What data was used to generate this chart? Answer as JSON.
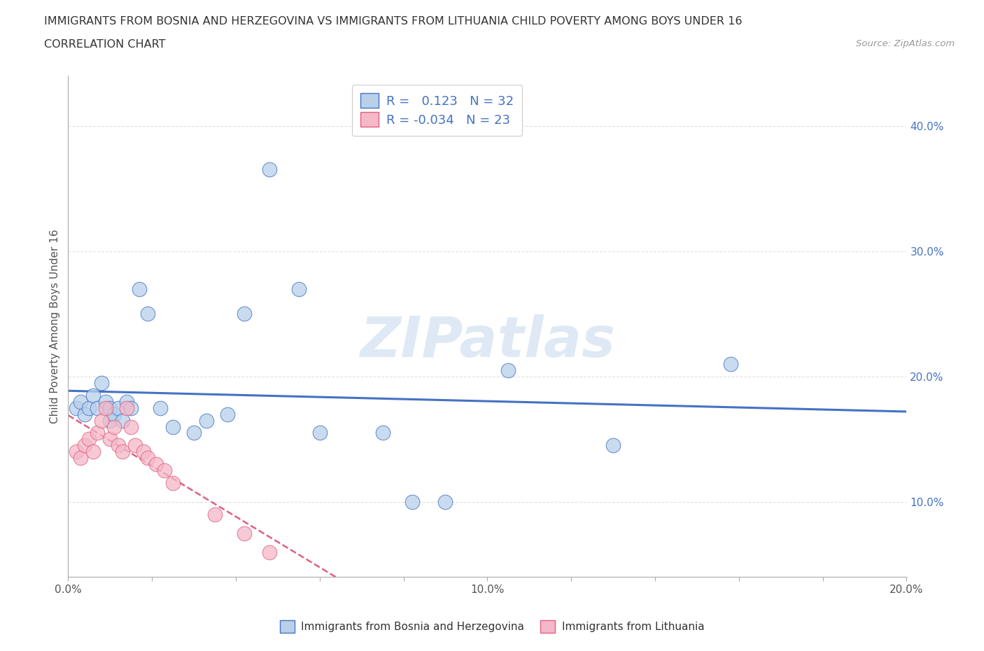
{
  "title_line1": "IMMIGRANTS FROM BOSNIA AND HERZEGOVINA VS IMMIGRANTS FROM LITHUANIA CHILD POVERTY AMONG BOYS UNDER 16",
  "title_line2": "CORRELATION CHART",
  "source_text": "Source: ZipAtlas.com",
  "ylabel": "Child Poverty Among Boys Under 16",
  "r_bosnia": 0.123,
  "n_bosnia": 32,
  "r_lithuania": -0.034,
  "n_lithuania": 23,
  "bosnia_color": "#b8d0ea",
  "lithuania_color": "#f5b8c8",
  "bosnia_line_color": "#4472c4",
  "lithuania_line_color": "#e06080",
  "xlim": [
    0.0,
    0.2
  ],
  "ylim": [
    0.04,
    0.44
  ],
  "ytick_positions": [
    0.1,
    0.2,
    0.3,
    0.4
  ],
  "ytick_labels": [
    "10.0%",
    "20.0%",
    "30.0%",
    "40.0%"
  ],
  "background_color": "#ffffff",
  "grid_color": "#dddddd",
  "watermark_text": "ZIPatlas",
  "legend_label_bosnia": "Immigrants from Bosnia and Herzegovina",
  "legend_label_lithuania": "Immigrants from Lithuania",
  "bosnia_x": [
    0.002,
    0.003,
    0.004,
    0.005,
    0.006,
    0.007,
    0.008,
    0.009,
    0.01,
    0.01,
    0.011,
    0.012,
    0.013,
    0.014,
    0.015,
    0.017,
    0.019,
    0.022,
    0.025,
    0.03,
    0.033,
    0.038,
    0.042,
    0.048,
    0.055,
    0.06,
    0.075,
    0.082,
    0.09,
    0.105,
    0.13,
    0.158
  ],
  "bosnia_y": [
    0.175,
    0.18,
    0.17,
    0.175,
    0.185,
    0.175,
    0.195,
    0.18,
    0.175,
    0.165,
    0.17,
    0.175,
    0.165,
    0.18,
    0.175,
    0.27,
    0.25,
    0.175,
    0.16,
    0.155,
    0.165,
    0.17,
    0.25,
    0.365,
    0.27,
    0.155,
    0.155,
    0.1,
    0.1,
    0.205,
    0.145,
    0.21
  ],
  "lithuania_x": [
    0.002,
    0.003,
    0.004,
    0.005,
    0.006,
    0.007,
    0.008,
    0.009,
    0.01,
    0.011,
    0.012,
    0.013,
    0.014,
    0.015,
    0.016,
    0.018,
    0.019,
    0.021,
    0.023,
    0.025,
    0.035,
    0.042,
    0.048
  ],
  "lithuania_y": [
    0.14,
    0.135,
    0.145,
    0.15,
    0.14,
    0.155,
    0.165,
    0.175,
    0.15,
    0.16,
    0.145,
    0.14,
    0.175,
    0.16,
    0.145,
    0.14,
    0.135,
    0.13,
    0.125,
    0.115,
    0.09,
    0.075,
    0.06
  ]
}
